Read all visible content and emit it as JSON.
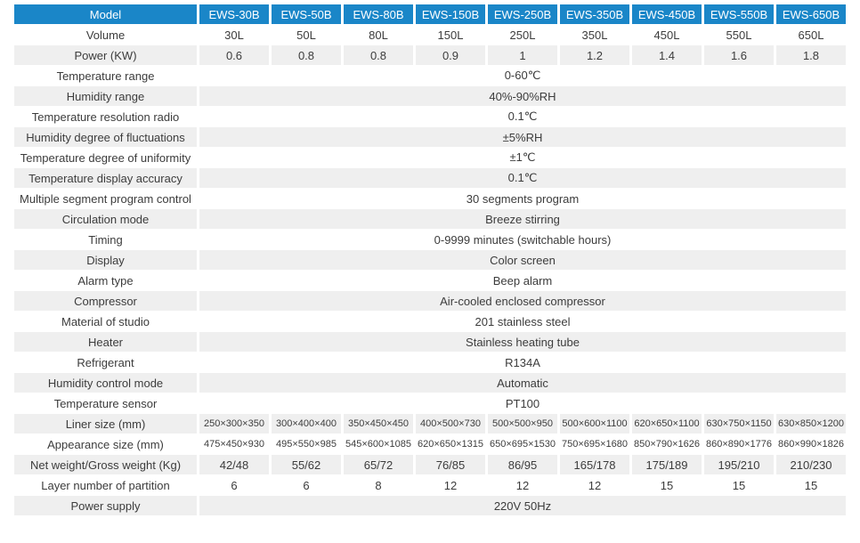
{
  "colors": {
    "header_bg": "#1a86c8",
    "header_text": "#ffffff",
    "row_alt_bg": "#efefef",
    "body_text": "#3c3c3c"
  },
  "table": {
    "header": [
      "Model",
      "EWS-30B",
      "EWS-50B",
      "EWS-80B",
      "EWS-150B",
      "EWS-250B",
      "EWS-350B",
      "EWS-450B",
      "EWS-550B",
      "EWS-650B"
    ],
    "rows": [
      {
        "label": "Volume",
        "values": [
          "30L",
          "50L",
          "80L",
          "150L",
          "250L",
          "350L",
          "450L",
          "550L",
          "650L"
        ]
      },
      {
        "label": "Power (KW)",
        "values": [
          "0.6",
          "0.8",
          "0.8",
          "0.9",
          "1",
          "1.2",
          "1.4",
          "1.6",
          "1.8"
        ]
      },
      {
        "label": "Temperature range",
        "value": "0-60℃"
      },
      {
        "label": "Humidity range",
        "value": "40%-90%RH"
      },
      {
        "label": "Temperature resolution radio",
        "value": "0.1℃"
      },
      {
        "label": "Humidity degree of fluctuations",
        "value": "±5%RH"
      },
      {
        "label": "Temperature degree of uniformity",
        "value": "±1℃"
      },
      {
        "label": "Temperature display accuracy",
        "value": "0.1℃"
      },
      {
        "label": "Multiple segment program control",
        "value": "30 segments program"
      },
      {
        "label": "Circulation mode",
        "value": "Breeze stirring"
      },
      {
        "label": "Timing",
        "value": "0-9999 minutes (switchable hours)"
      },
      {
        "label": "Display",
        "value": "Color screen"
      },
      {
        "label": "Alarm type",
        "value": "Beep alarm"
      },
      {
        "label": "Compressor",
        "value": "Air-cooled enclosed compressor"
      },
      {
        "label": "Material of studio",
        "value": "201 stainless steel"
      },
      {
        "label": "Heater",
        "value": "Stainless heating tube"
      },
      {
        "label": "Refrigerant",
        "value": "R134A"
      },
      {
        "label": "Humidity control mode",
        "value": "Automatic"
      },
      {
        "label": "Temperature sensor",
        "value": "PT100"
      },
      {
        "label": "Liner size (mm)",
        "values": [
          "250×300×350",
          "300×400×400",
          "350×450×450",
          "400×500×730",
          "500×500×950",
          "500×600×1100",
          "620×650×1100",
          "630×750×1150",
          "630×850×1200"
        ]
      },
      {
        "label": "Appearance size (mm)",
        "values": [
          "475×450×930",
          "495×550×985",
          "545×600×1085",
          "620×650×1315",
          "650×695×1530",
          "750×695×1680",
          "850×790×1626",
          "860×890×1776",
          "860×990×1826"
        ]
      },
      {
        "label": "Net weight/Gross weight (Kg)",
        "values": [
          "42/48",
          "55/62",
          "65/72",
          "76/85",
          "86/95",
          "165/178",
          "175/189",
          "195/210",
          "210/230"
        ]
      },
      {
        "label": "Layer number of partition",
        "values": [
          "6",
          "6",
          "8",
          "12",
          "12",
          "12",
          "15",
          "15",
          "15"
        ]
      },
      {
        "label": "Power supply",
        "value": "220V 50Hz"
      }
    ]
  }
}
